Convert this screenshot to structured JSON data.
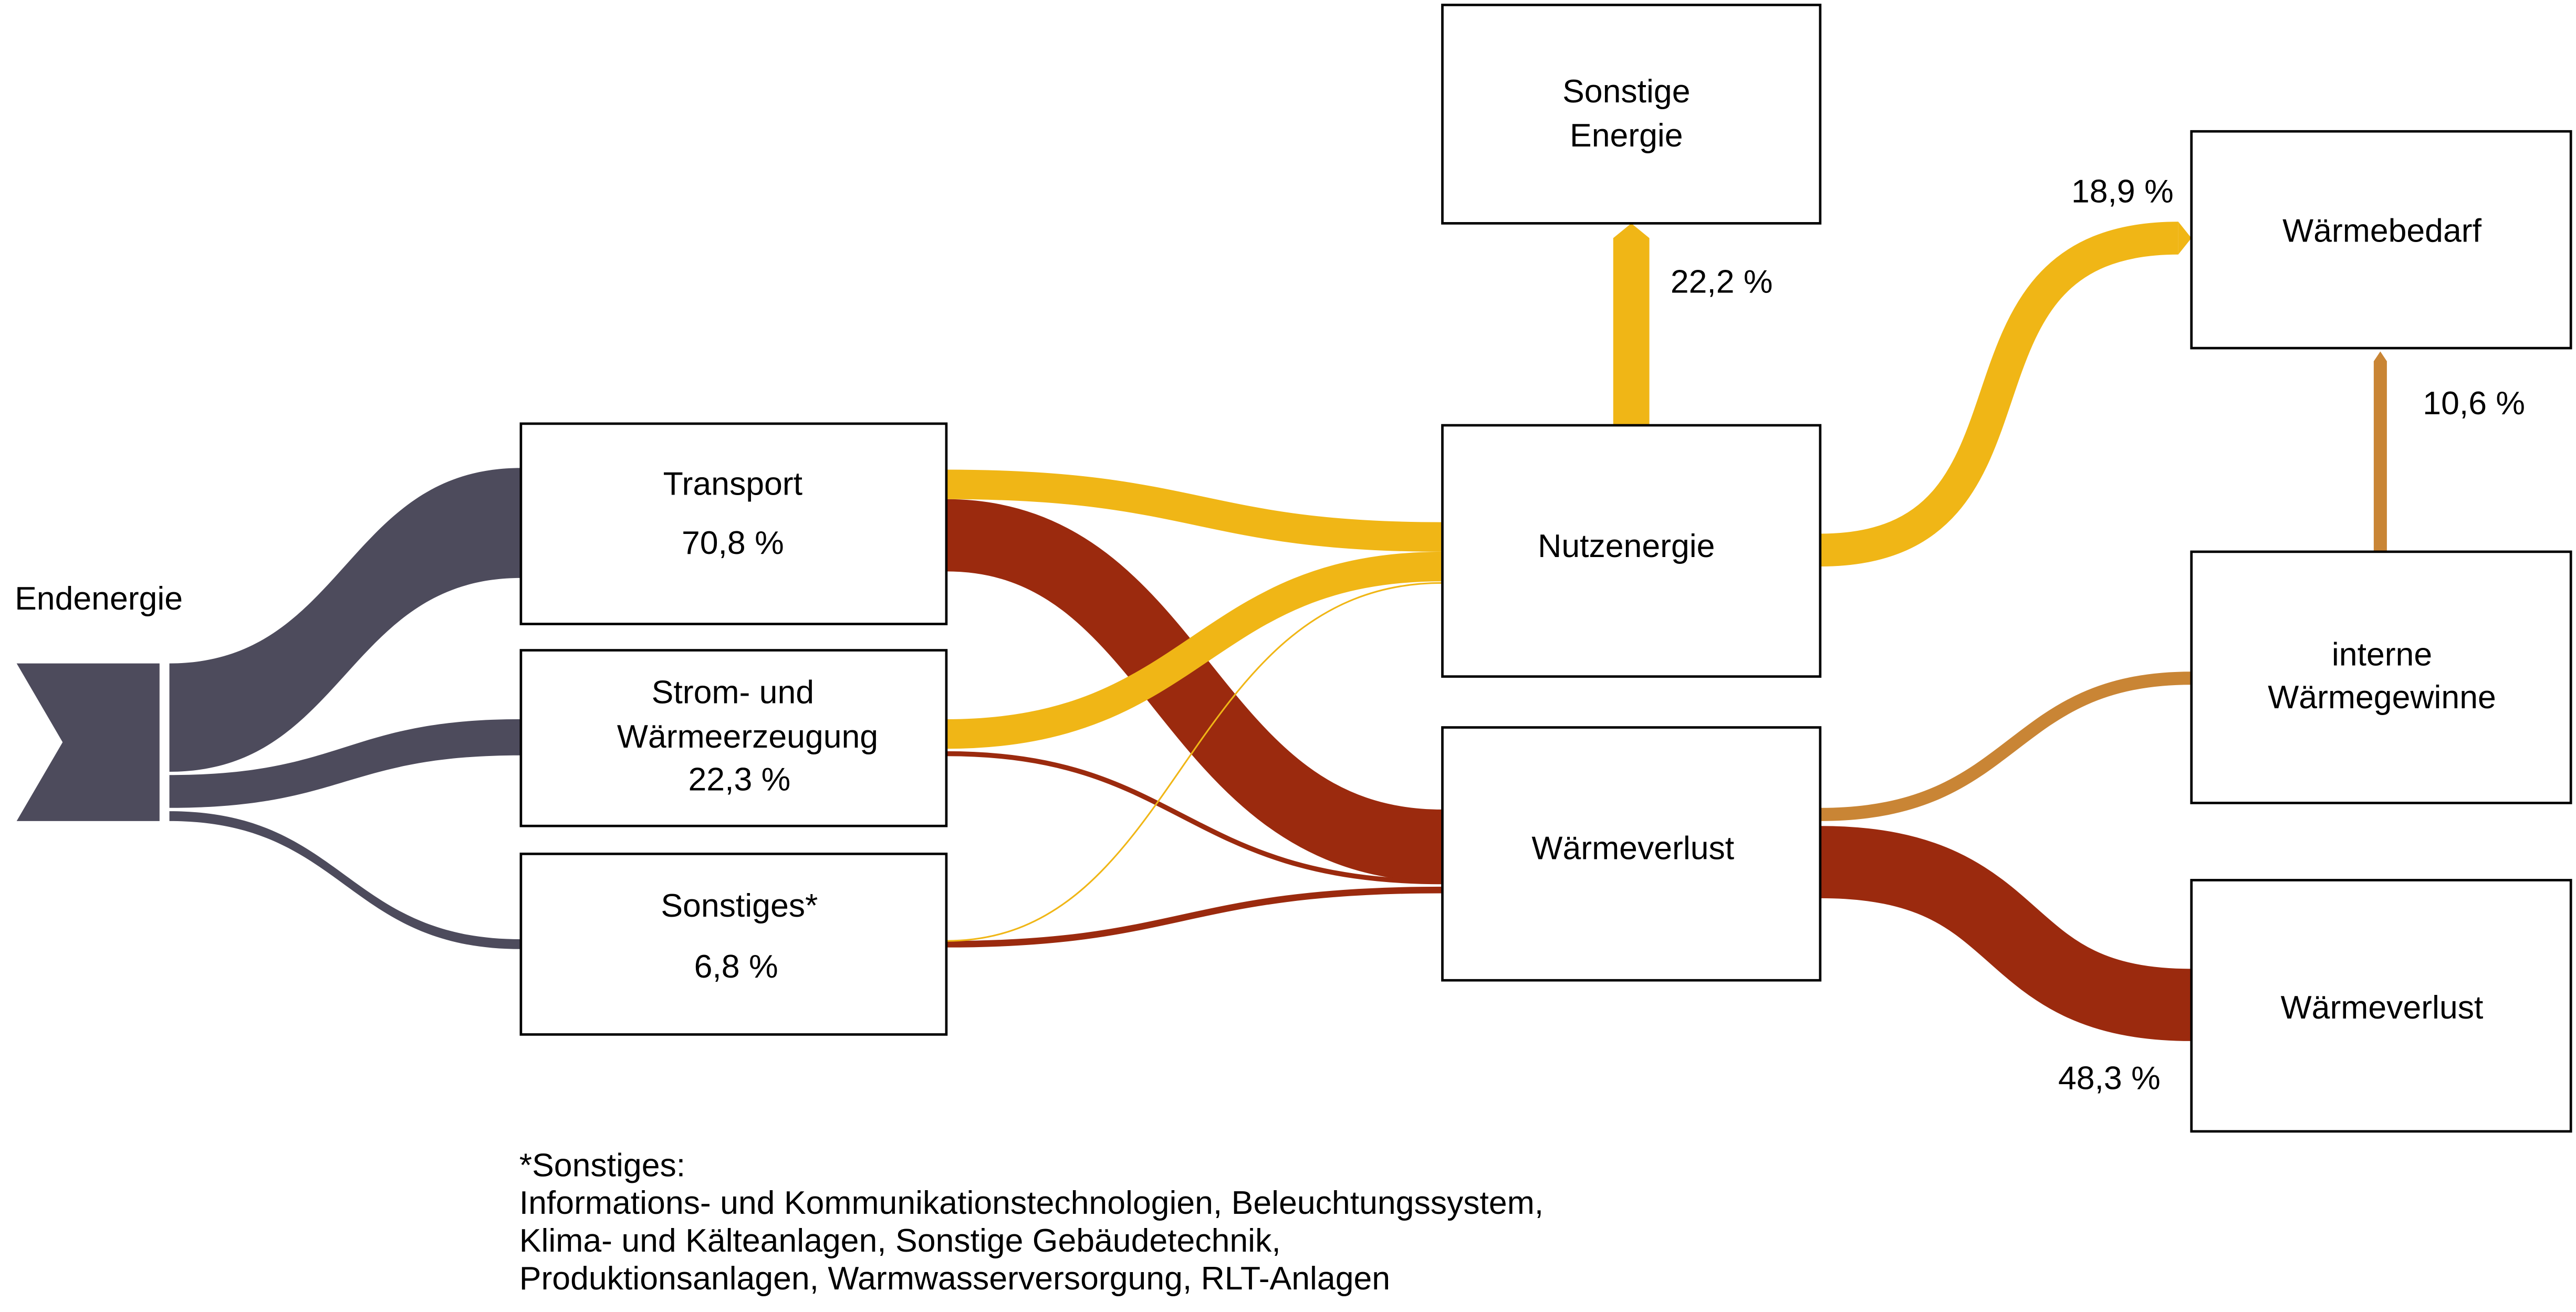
{
  "source": {
    "label": "Endenergie"
  },
  "nodes": [
    {
      "lines": [
        "Transport"
      ],
      "value": "70,8 %"
    },
    {
      "lines": [
        "Strom- und",
        "Wärmeerzeugung"
      ],
      "value": "22,3 %"
    },
    {
      "lines": [
        "Sonstiges*"
      ],
      "value": "6,8 %"
    },
    {
      "lines": [
        "Sonstige",
        "Energie"
      ]
    },
    {
      "lines": [
        "Nutzenergie"
      ]
    },
    {
      "lines": [
        "Wärmeverlust"
      ]
    },
    {
      "lines": [
        "Wärmebedarf"
      ]
    },
    {
      "lines": [
        "interne",
        "Wärmegewinne"
      ]
    },
    {
      "lines": [
        "Wärmeverlust"
      ]
    }
  ],
  "flow_labels": [
    "22,2 %",
    "18,9 %",
    "10,6 %",
    "48,3 %"
  ],
  "footnote": [
    "*Sonstiges:",
    "Informations- und Kommunikationstechnologien, Beleuchtungssystem,",
    "Klima- und Kälteanlagen, Sonstige Gebäudetechnik,",
    "Produktionsanlagen, Warmwasserversorgung, RLT-Anlagen"
  ]
}
